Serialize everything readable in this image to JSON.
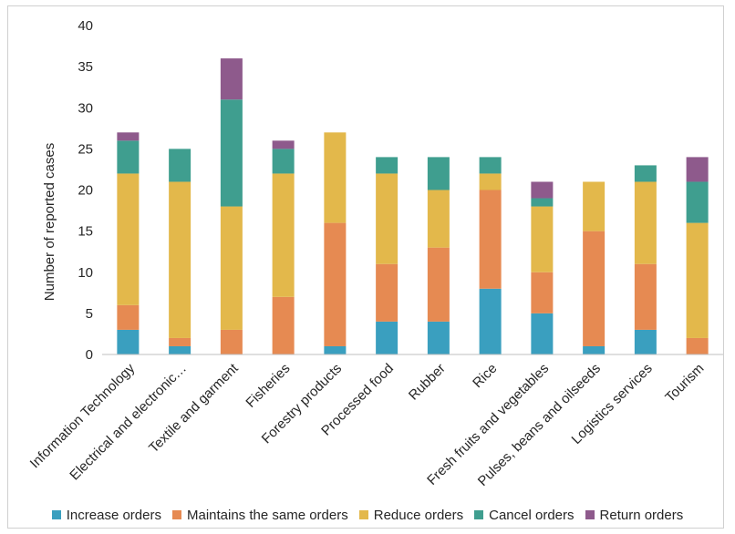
{
  "chart_data": {
    "type": "bar",
    "stacked": true,
    "ylabel": "Number of reported cases",
    "xlabel": "",
    "ylim": [
      0,
      40
    ],
    "yticks": [
      0,
      5,
      10,
      15,
      20,
      25,
      30,
      35,
      40
    ],
    "grid": false,
    "legend_position": "bottom",
    "categories": [
      "Information Technology",
      "Electrical and electronic…",
      "Textile and garment",
      "Fisheries",
      "Forestry products",
      "Processed food",
      "Rubber",
      "Rice",
      "Fresh fruits and vegetables",
      "Pulses, beans and oilseeds",
      "Logistics services",
      "Tourism"
    ],
    "series": [
      {
        "name": "Increase orders",
        "color": "#3a9fbf",
        "values": [
          3,
          1,
          0,
          0,
          1,
          4,
          4,
          8,
          5,
          1,
          3,
          0
        ]
      },
      {
        "name": "Maintains the same orders",
        "color": "#e68a52",
        "values": [
          3,
          1,
          3,
          7,
          15,
          7,
          9,
          12,
          5,
          14,
          8,
          2
        ]
      },
      {
        "name": "Reduce orders",
        "color": "#e3b84b",
        "values": [
          16,
          19,
          15,
          15,
          11,
          11,
          7,
          2,
          8,
          6,
          10,
          14
        ]
      },
      {
        "name": "Cancel orders",
        "color": "#3f9e8f",
        "values": [
          4,
          4,
          13,
          3,
          0,
          2,
          4,
          2,
          1,
          0,
          2,
          5
        ]
      },
      {
        "name": "Return orders",
        "color": "#8e5a8c",
        "values": [
          1,
          0,
          5,
          1,
          0,
          0,
          0,
          0,
          2,
          0,
          0,
          3
        ]
      }
    ]
  }
}
